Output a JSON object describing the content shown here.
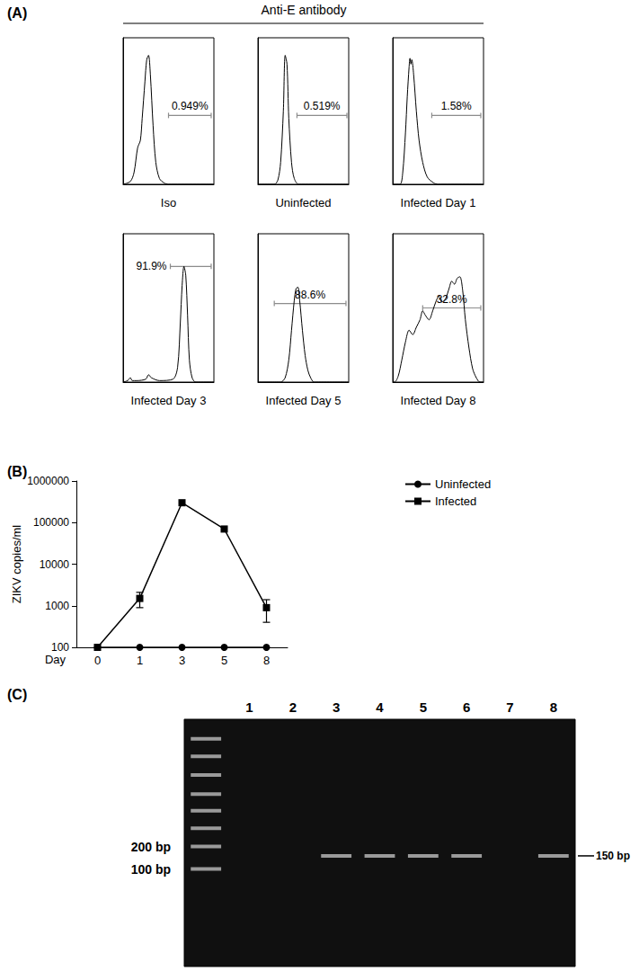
{
  "figure": {
    "panels": [
      {
        "label": "(A)",
        "title": "Anti-E antibody"
      },
      {
        "label": "(B)"
      },
      {
        "label": "(C)"
      }
    ]
  },
  "chart_data": [
    {
      "type": "line",
      "title": "Iso",
      "x": [
        0,
        8,
        12,
        16,
        19,
        21,
        24,
        26,
        28,
        30,
        33,
        36,
        40,
        45,
        50,
        100
      ],
      "values": [
        0,
        2,
        8,
        25,
        30,
        45,
        70,
        85,
        88,
        75,
        40,
        15,
        4,
        1,
        0,
        0
      ],
      "xlim": [
        0,
        100
      ],
      "ylim": [
        0,
        100
      ],
      "tick_labels": false,
      "color": "#000000",
      "gate": {
        "range": [
          50,
          97
        ],
        "y": 47,
        "value": 0.949,
        "label": "0.949%"
      }
    },
    {
      "type": "line",
      "title": "Uninfected",
      "x": [
        0,
        18,
        22,
        25,
        28,
        30,
        32,
        34,
        37,
        40,
        45,
        100
      ],
      "values": [
        0,
        0,
        3,
        15,
        50,
        88,
        82,
        45,
        15,
        4,
        0,
        0
      ],
      "xlim": [
        0,
        100
      ],
      "ylim": [
        0,
        100
      ],
      "tick_labels": false,
      "color": "#000000",
      "gate": {
        "range": [
          43,
          98
        ],
        "y": 47,
        "value": 0.519,
        "label": "0.519%"
      }
    },
    {
      "type": "line",
      "title": "Infected Day 1",
      "x": [
        0,
        8,
        11,
        14,
        16,
        18,
        19,
        20,
        21,
        23,
        26,
        29,
        33,
        38,
        45,
        50,
        100
      ],
      "values": [
        0,
        0,
        8,
        35,
        60,
        80,
        86,
        82,
        85,
        75,
        50,
        30,
        15,
        5,
        1,
        0,
        0
      ],
      "xlim": [
        0,
        100
      ],
      "ylim": [
        0,
        100
      ],
      "tick_labels": false,
      "color": "#000000",
      "gate": {
        "range": [
          43,
          97
        ],
        "y": 47,
        "value": 1.58,
        "label": "1.58%"
      }
    },
    {
      "type": "line",
      "title": "Infected Day 3",
      "x": [
        0,
        5,
        8,
        10,
        15,
        25,
        28,
        31,
        40,
        55,
        60,
        63,
        65,
        67,
        69,
        71,
        73,
        76,
        80,
        100
      ],
      "values": [
        0,
        1,
        3,
        1,
        1,
        2,
        5,
        3,
        1,
        2,
        10,
        40,
        65,
        78,
        72,
        45,
        15,
        3,
        0,
        0
      ],
      "xlim": [
        0,
        100
      ],
      "ylim": [
        0,
        100
      ],
      "tick_labels": false,
      "color": "#000000",
      "gate": {
        "range": [
          52,
          97
        ],
        "y": 78,
        "value": 91.9,
        "label": "91.9%"
      }
    },
    {
      "type": "line",
      "title": "Infected Day 5",
      "x": [
        0,
        25,
        30,
        34,
        37,
        40,
        42,
        44,
        46,
        49,
        52,
        55,
        58,
        62,
        100
      ],
      "values": [
        0,
        0,
        3,
        15,
        35,
        55,
        63,
        64,
        55,
        35,
        18,
        8,
        3,
        0,
        0
      ],
      "xlim": [
        0,
        100
      ],
      "ylim": [
        0,
        100
      ],
      "tick_labels": false,
      "color": "#000000",
      "gate": {
        "range": [
          18,
          97
        ],
        "y": 53,
        "value": 88.6,
        "label": "88.6%"
      }
    },
    {
      "type": "line",
      "title": "Infected Day 8",
      "x": [
        0,
        2,
        6,
        10,
        14,
        18,
        22,
        26,
        30,
        33,
        36,
        40,
        44,
        48,
        51,
        54,
        58,
        62,
        65,
        68,
        71,
        74,
        77,
        80,
        84,
        88,
        92,
        96,
        100
      ],
      "values": [
        0,
        0,
        4,
        15,
        27,
        35,
        32,
        37,
        42,
        48,
        45,
        42,
        48,
        55,
        58,
        54,
        56,
        63,
        68,
        66,
        70,
        71,
        62,
        42,
        23,
        9,
        3,
        0,
        0
      ],
      "xlim": [
        0,
        100
      ],
      "ylim": [
        0,
        100
      ],
      "tick_labels": false,
      "color": "#000000",
      "gate": {
        "range": [
          33,
          97
        ],
        "y": 50,
        "value": 32.8,
        "label": "32.8%"
      }
    },
    {
      "type": "line",
      "x_label": "Day",
      "y_label": "ZIKV copies/ml",
      "categories": [
        "0",
        "1",
        "3",
        "5",
        "8"
      ],
      "series": [
        {
          "name": "Uninfected",
          "color": "#000000",
          "marker": "circle",
          "values": [
            100,
            100,
            100,
            100,
            100
          ]
        },
        {
          "name": "Infected",
          "color": "#000000",
          "marker": "square",
          "values": [
            100,
            1500,
            300000,
            70000,
            900
          ],
          "errors": [
            null,
            600,
            null,
            null,
            500
          ]
        }
      ],
      "log": "y",
      "ylim": [
        100,
        1000000
      ],
      "yticks": [
        100,
        1000,
        10000,
        100000,
        1000000
      ],
      "grid": false,
      "legend": "upper right"
    },
    {
      "type": "gel",
      "categories": [
        null,
        "1",
        "2",
        "3",
        "4",
        "5",
        "6",
        "7",
        "8"
      ],
      "log": "y",
      "ylim": [
        5,
        10000
      ],
      "yticks": [
        {
          "value": 100,
          "label": "100 bp"
        },
        {
          "value": 200,
          "label": "200 bp"
        }
      ],
      "ladder_bp": [
        100,
        200,
        350,
        600,
        1000,
        1800,
        3200,
        5500
      ],
      "bands": [
        {
          "lane": "3",
          "bp": 150
        },
        {
          "lane": "4",
          "bp": 150
        },
        {
          "lane": "5",
          "bp": 150
        },
        {
          "lane": "6",
          "bp": 150
        },
        {
          "lane": "8",
          "bp": 150
        }
      ],
      "annotations": [
        {
          "label": "150 bp",
          "value": 150
        }
      ],
      "color": "#9a9a9a"
    }
  ]
}
